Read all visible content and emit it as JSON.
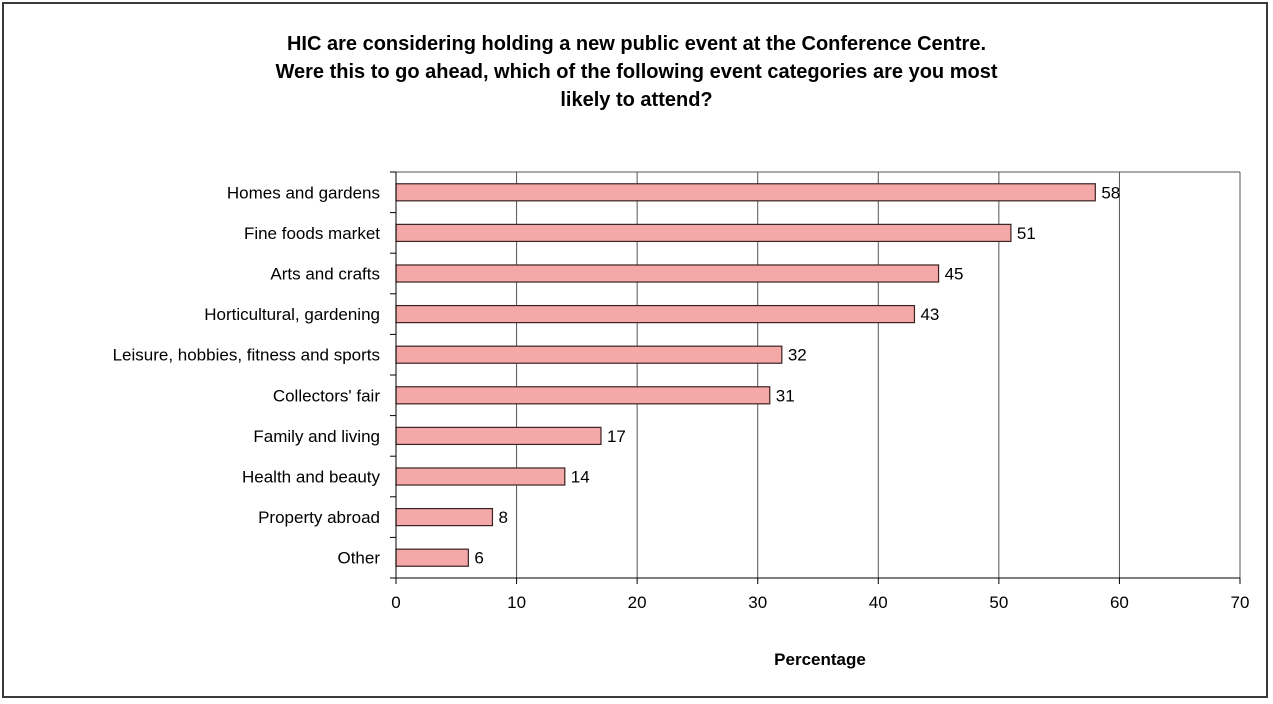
{
  "chart_data": {
    "type": "bar",
    "orientation": "horizontal",
    "title_lines": [
      "HIC are considering holding a new public event at the Conference Centre.",
      "Were this to go ahead, which of the following event categories are you most",
      "likely to attend?"
    ],
    "categories": [
      "Homes and gardens",
      "Fine foods market",
      "Arts and crafts",
      "Horticultural, gardening",
      "Leisure, hobbies, fitness and sports",
      "Collectors' fair",
      "Family and living",
      "Health and beauty",
      "Property abroad",
      "Other"
    ],
    "values": [
      58,
      51,
      45,
      43,
      32,
      31,
      17,
      14,
      8,
      6
    ],
    "data_labels": [
      "58",
      "51",
      "45",
      "43",
      "32",
      "31",
      "17",
      "14",
      "8",
      "6"
    ],
    "xlabel": "Percentage",
    "ylabel": "",
    "xlim": [
      0,
      70
    ],
    "xticks": [
      0,
      10,
      20,
      30,
      40,
      50,
      60,
      70
    ],
    "xtick_labels": [
      "0",
      "10",
      "20",
      "30",
      "40",
      "50",
      "60",
      "70"
    ],
    "grid": "vertical",
    "legend": "none",
    "colors": {
      "bar_fill": "#f4a9a8",
      "bar_stroke": "#3a2222",
      "grid": "#555555",
      "frame": "#3a3a3a"
    }
  }
}
